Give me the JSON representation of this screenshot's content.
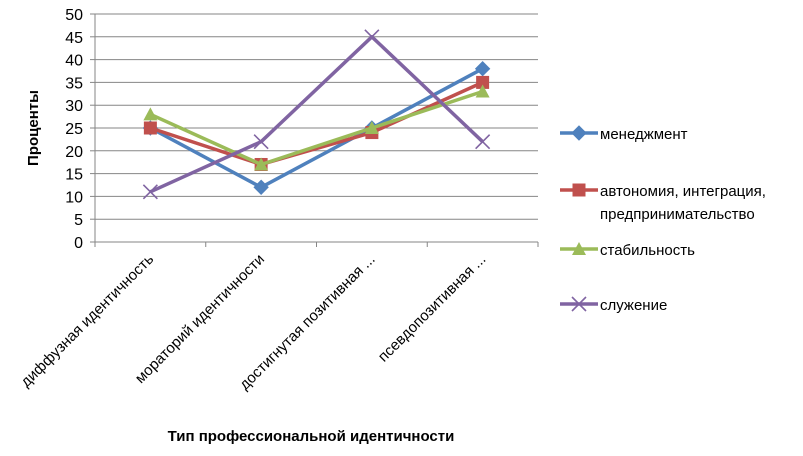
{
  "chart_data": {
    "type": "line",
    "title": "",
    "xlabel": "Тип профессиональной идентичности",
    "ylabel": "Проценты",
    "ylim": [
      0,
      50
    ],
    "yticks": [
      0,
      5,
      10,
      15,
      20,
      25,
      30,
      35,
      40,
      45,
      50
    ],
    "grid": true,
    "legend_position": "right",
    "categories": [
      "диффузная идентичность",
      "мораторий идентичности",
      "достигнутая позитивная ...",
      "псевдопозитивная ..."
    ],
    "series": [
      {
        "name": "менеджмент",
        "values": [
          25,
          12,
          25,
          38
        ],
        "color": "#4F81BD",
        "marker": "diamond"
      },
      {
        "name": "автономия, интеграция, предпринимательство",
        "name_lines": [
          "автономия, интеграция,",
          "предпринимательство"
        ],
        "values": [
          25,
          17,
          24,
          35
        ],
        "color": "#C0504D",
        "marker": "square"
      },
      {
        "name": "стабильность",
        "values": [
          28,
          17,
          25,
          33
        ],
        "color": "#9BBB59",
        "marker": "triangle"
      },
      {
        "name": "служение",
        "values": [
          11,
          22,
          45,
          22
        ],
        "color": "#8064A2",
        "marker": "x"
      }
    ]
  }
}
